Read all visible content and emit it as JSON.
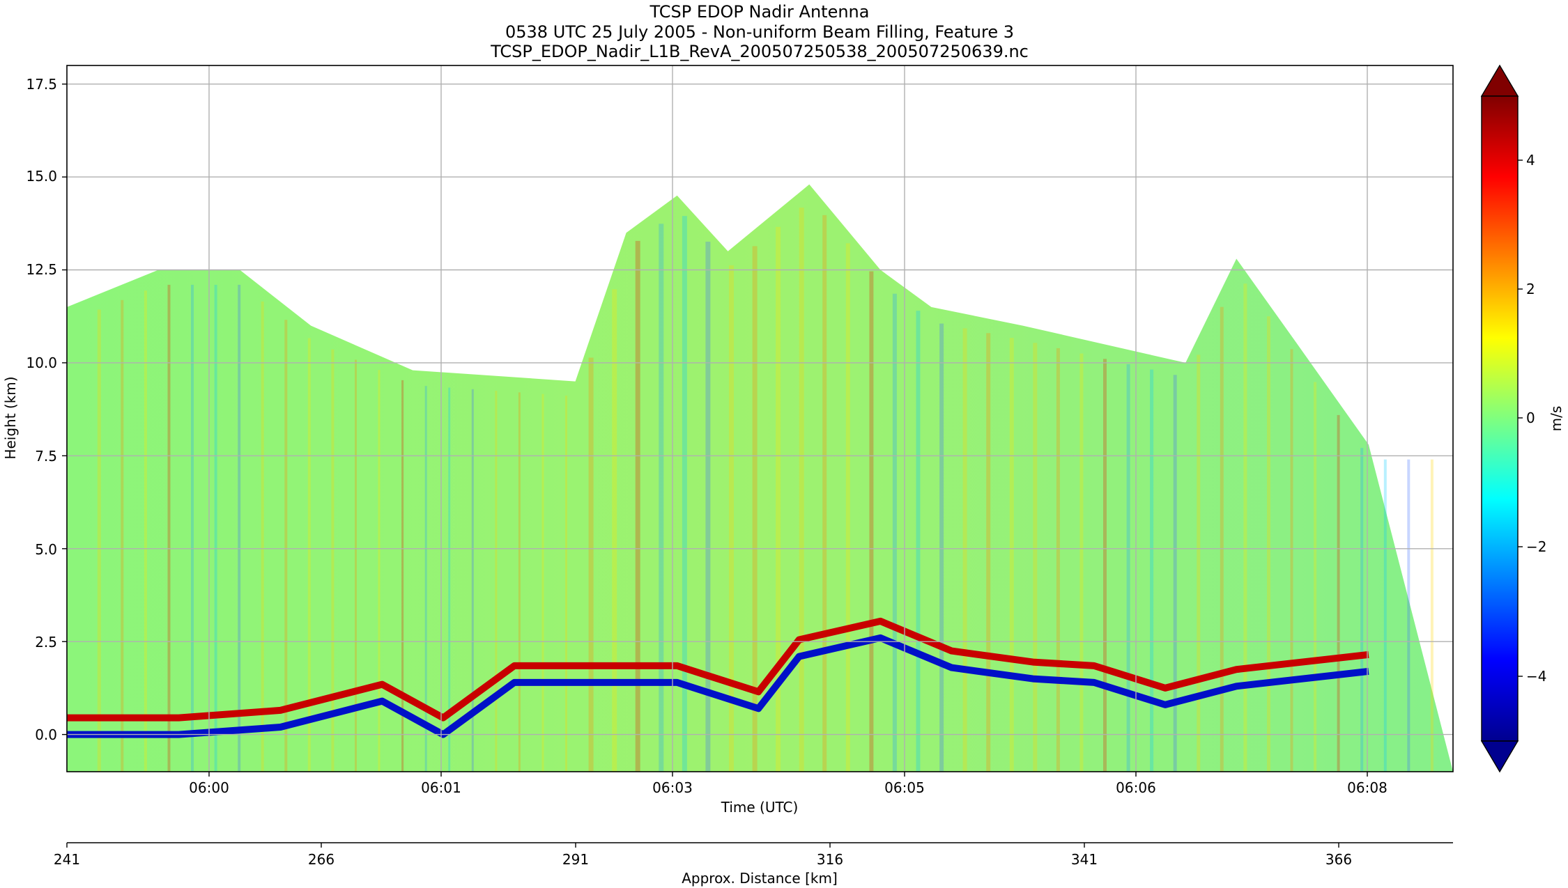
{
  "chart_data": {
    "type": "heatmap",
    "title_lines": [
      "TCSP EDOP Nadir Antenna",
      "0538 UTC 25 July 2005 - Non-uniform Beam Filling, Feature 3",
      "TCSP_EDOP_Nadir_L1B_RevA_200507250538_200507250639.nc"
    ],
    "xlabel": "Time (UTC)",
    "ylabel": "Height (km)",
    "x_ticks": [
      "06:00",
      "06:01",
      "06:03",
      "06:05",
      "06:06",
      "06:08"
    ],
    "y_ticks": [
      "0.0",
      "2.5",
      "5.0",
      "7.5",
      "10.0",
      "12.5",
      "15.0",
      "17.5"
    ],
    "ylim": [
      -1.0,
      18.0
    ],
    "grid": true,
    "secondary_x_axis": {
      "label": "Approx. Distance [km]",
      "ticks": [
        "241",
        "266",
        "291",
        "316",
        "341",
        "366"
      ]
    },
    "colorbar": {
      "label": "m/s",
      "ticks": [
        "−4",
        "−2",
        "0",
        "2",
        "4"
      ],
      "range": [
        -5,
        5
      ],
      "colormap": "jet",
      "extend": "both"
    },
    "field": {
      "surface_height_km_by_distance": [
        [
          241,
          0.3
        ],
        [
          252,
          0.3
        ],
        [
          262,
          0.5
        ],
        [
          272,
          1.2
        ],
        [
          278,
          0.3
        ],
        [
          285,
          1.7
        ],
        [
          301,
          1.7
        ],
        [
          309,
          1.0
        ],
        [
          313,
          2.4
        ],
        [
          321,
          2.9
        ],
        [
          328,
          2.1
        ],
        [
          336,
          1.8
        ],
        [
          342,
          1.7
        ],
        [
          349,
          1.1
        ],
        [
          356,
          1.6
        ],
        [
          369,
          2.0
        ]
      ],
      "cloud_top_km_by_distance": [
        [
          241,
          11.5
        ],
        [
          250,
          12.5
        ],
        [
          258,
          12.5
        ],
        [
          265,
          11.0
        ],
        [
          275,
          9.8
        ],
        [
          291,
          9.5
        ],
        [
          296,
          13.5
        ],
        [
          301,
          14.5
        ],
        [
          306,
          13.0
        ],
        [
          314,
          14.8
        ],
        [
          321,
          12.5
        ],
        [
          326,
          11.5
        ],
        [
          335,
          11.0
        ],
        [
          351,
          10.0
        ],
        [
          356,
          12.8
        ],
        [
          362,
          10.5
        ],
        [
          369,
          7.8
        ]
      ]
    }
  }
}
